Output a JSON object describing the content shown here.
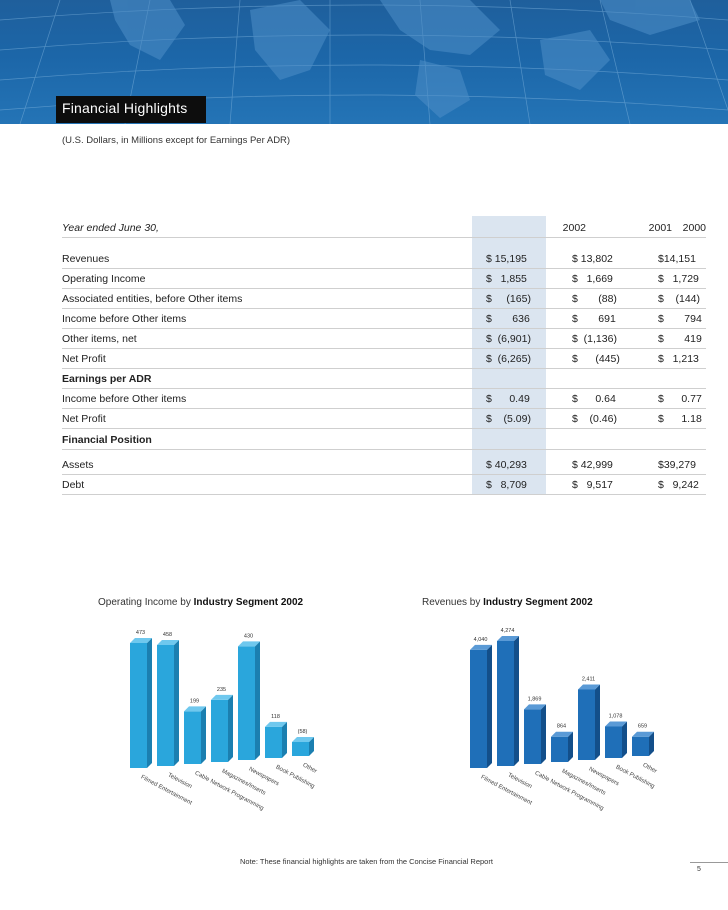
{
  "header": {
    "title": "Financial Highlights",
    "subtitle": "(U.S. Dollars, in Millions except for Earnings Per ADR)"
  },
  "table": {
    "year_label": "Year ended June 30,",
    "years": [
      "2002",
      "2001",
      "2000"
    ],
    "rows": [
      {
        "label": "Revenues",
        "values": [
          "$ 15,195",
          "$ 13,802",
          "$14,151"
        ]
      },
      {
        "label": "Operating Income",
        "values": [
          "$   1,855",
          "$   1,669",
          "$   1,729"
        ]
      },
      {
        "label": "Associated entities, before Other items",
        "values": [
          "$     (165)",
          "$       (88)",
          "$    (144)"
        ]
      },
      {
        "label": "Income before Other items",
        "values": [
          "$       636",
          "$       691",
          "$       794"
        ]
      },
      {
        "label": "Other items, net",
        "values": [
          "$  (6,901)",
          "$  (1,136)",
          "$       419"
        ]
      },
      {
        "label": "Net Profit",
        "values": [
          "$  (6,265)",
          "$      (445)",
          "$   1,213"
        ]
      }
    ],
    "eps_label": "Earnings per ADR",
    "eps_rows": [
      {
        "label": "Income before Other items",
        "values": [
          "$      0.49",
          "$      0.64",
          "$      0.77"
        ]
      },
      {
        "label": "Net Profit",
        "values": [
          "$    (5.09)",
          "$    (0.46)",
          "$      1.18"
        ]
      }
    ],
    "position_label": "Financial Position",
    "position_rows": [
      {
        "label": "Assets",
        "values": [
          "$ 40,293",
          "$ 42,999",
          "$39,279"
        ]
      },
      {
        "label": "Debt",
        "values": [
          "$   8,709",
          "$   9,517",
          "$   9,242"
        ]
      }
    ]
  },
  "chart_data": [
    {
      "type": "bar",
      "title_prefix": "Operating Income by ",
      "title_bold": "Industry Segment 2002",
      "categories": [
        "Filmed Entertainment",
        "Television",
        "Cable Network Programming",
        "Magazines/Inserts",
        "Newspapers",
        "Book Publishing",
        "Other"
      ],
      "values": [
        473,
        458,
        199,
        235,
        430,
        118,
        -58
      ],
      "labels": [
        "473",
        "458",
        "199",
        "235",
        "430",
        "118",
        "(58)"
      ],
      "color": "#2aa6dc",
      "side_color": "#1b7fb0",
      "top_color": "#6fc8ee"
    },
    {
      "type": "bar",
      "title_prefix": "Revenues by ",
      "title_bold": "Industry Segment 2002",
      "categories": [
        "Filmed Entertainment",
        "Television",
        "Cable Network Programming",
        "Magazines/Inserts",
        "Newspapers",
        "Book Publishing",
        "Other"
      ],
      "values": [
        4040,
        4274,
        1869,
        864,
        2411,
        1078,
        659
      ],
      "labels": [
        "4,040",
        "4,274",
        "1,869",
        "864",
        "2,411",
        "1,078",
        "659"
      ],
      "color": "#1f6fb8",
      "side_color": "#134f8a",
      "top_color": "#5a9ad6"
    }
  ],
  "footer": {
    "note": "Note: These financial highlights are taken from the Concise Financial Report",
    "page_number": "5"
  }
}
